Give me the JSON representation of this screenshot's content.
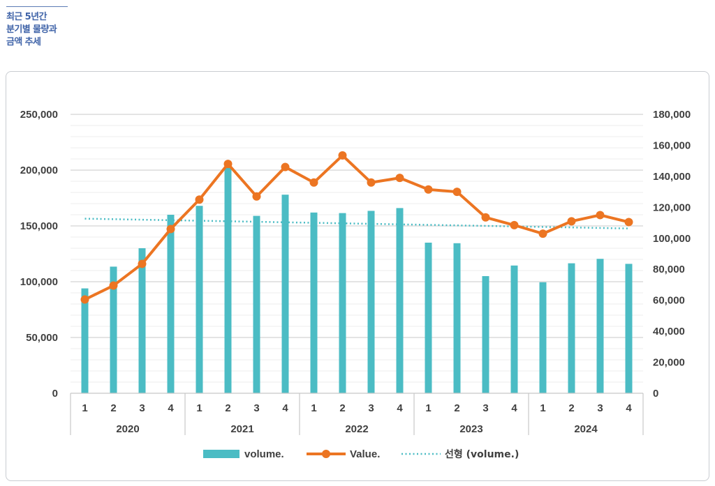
{
  "title": {
    "lines": [
      "최근 5년간",
      "분기별 물량과",
      "금액 추세"
    ]
  },
  "chart_data": {
    "type": "bar",
    "years": [
      "2020",
      "2021",
      "2022",
      "2023",
      "2024"
    ],
    "quarters": [
      "1",
      "2",
      "3",
      "4"
    ],
    "y_left": {
      "ylim": [
        0,
        250000
      ],
      "ticks": [
        0,
        50000,
        100000,
        150000,
        200000,
        250000
      ],
      "tick_labels": [
        "0",
        "50,000",
        "100,000",
        "150,000",
        "200,000",
        "250,000"
      ]
    },
    "y_right": {
      "ylim": [
        0,
        180000
      ],
      "ticks": [
        0,
        20000,
        40000,
        60000,
        80000,
        100000,
        120000,
        140000,
        160000,
        180000
      ],
      "tick_labels": [
        "0",
        "20,000",
        "40,000",
        "60,000",
        "80,000",
        "100,000",
        "120,000",
        "140,000",
        "160,000",
        "180,000"
      ]
    },
    "grid": true,
    "legend_position": "bottom",
    "series": [
      {
        "name": "volume.",
        "type": "bar",
        "axis": "left",
        "color": "#4bbcc4",
        "values": [
          94000,
          113500,
          130000,
          160000,
          168000,
          204000,
          159000,
          178000,
          162000,
          161500,
          163500,
          166000,
          135000,
          134500,
          105000,
          114500,
          99500,
          116500,
          120500,
          116000
        ]
      },
      {
        "name": "Value.",
        "type": "line",
        "axis": "right",
        "color": "#ec7522",
        "values": [
          60500,
          69500,
          83500,
          106000,
          125000,
          148000,
          127000,
          146000,
          136000,
          153500,
          136000,
          139000,
          131500,
          130000,
          113500,
          108500,
          103000,
          111000,
          115000,
          110500
        ]
      },
      {
        "name": "선형 (volume.)",
        "type": "trendline",
        "axis": "left",
        "color": "#4bbcc4",
        "values": [
          156500,
          147700
        ]
      }
    ]
  }
}
